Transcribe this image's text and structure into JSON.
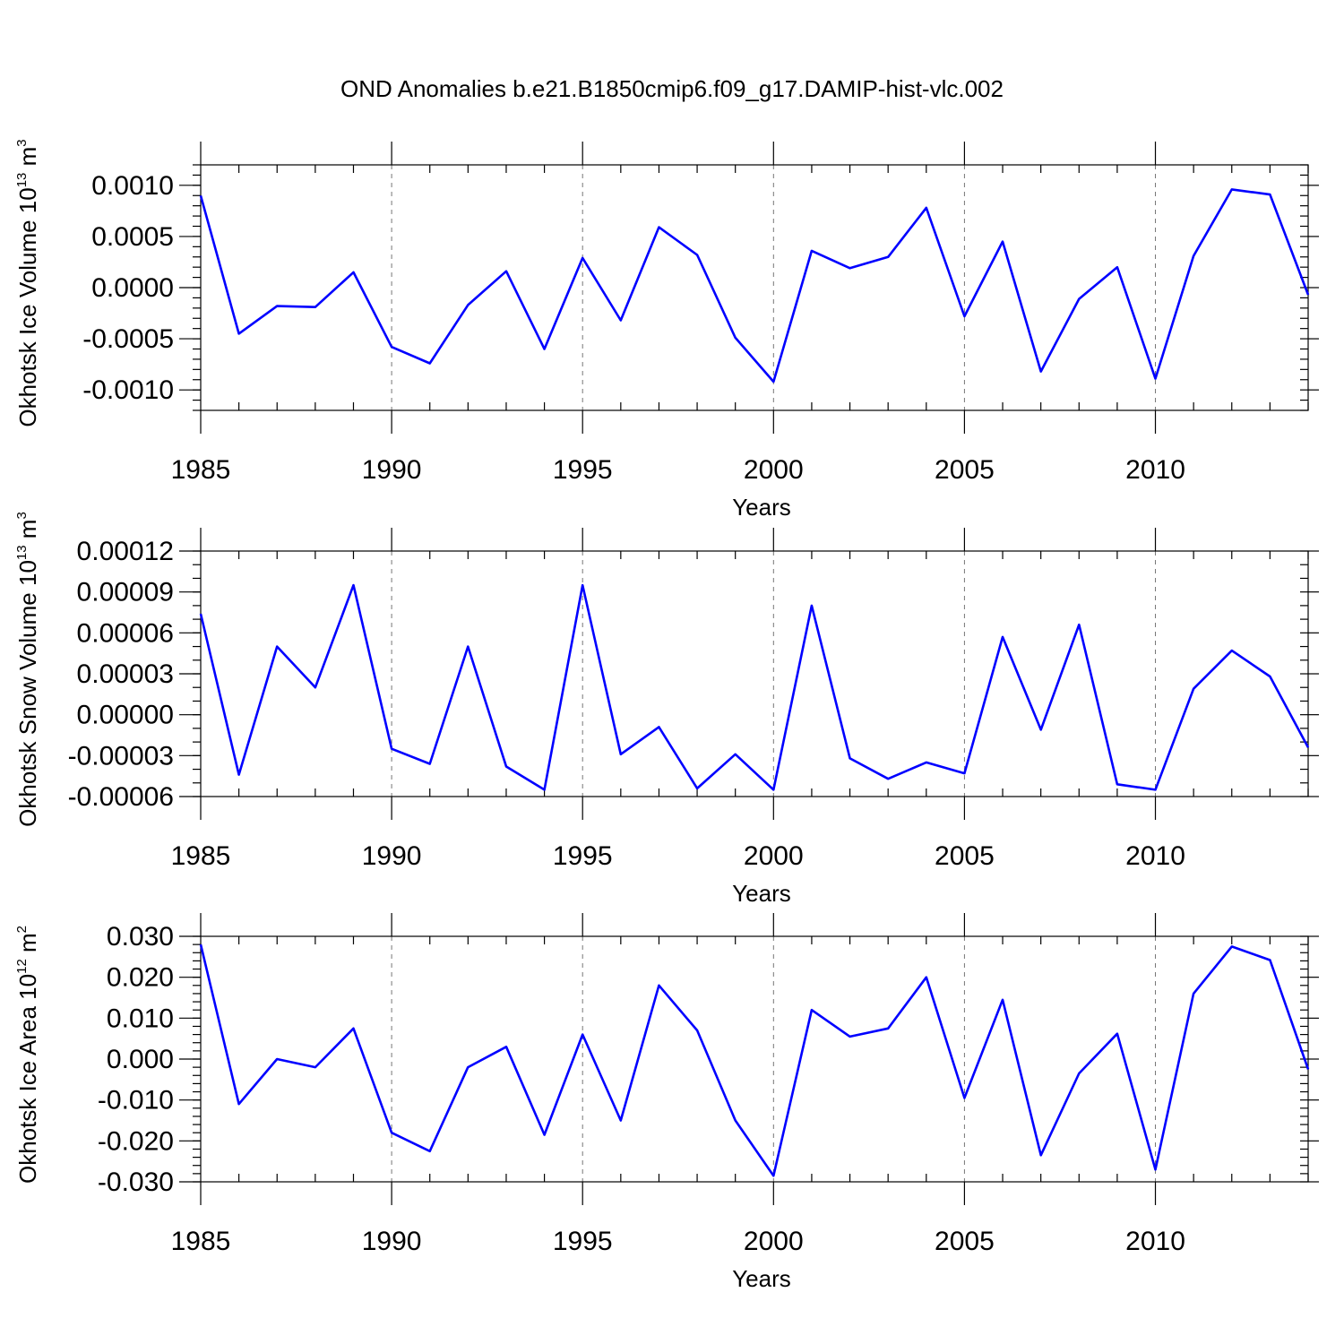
{
  "title": "OND Anomalies b.e21.B1850cmip6.f09_g17.DAMIP-hist-vlc.002",
  "colors": {
    "line": "#0000ff",
    "grid": "#777777",
    "axis": "#000000"
  },
  "chart_data": [
    {
      "type": "line",
      "ylabel": "Okhotsk Ice Volume 10",
      "ylabel_exp": "13",
      "ylabel_unit": " m",
      "ylabel_unit_exp": "3",
      "xlabel": "Years",
      "xlim": [
        1985,
        2014
      ],
      "ylim": [
        -0.0012,
        0.0012
      ],
      "yticks": [
        0.001,
        0.0005,
        0.0,
        -0.0005,
        -0.001
      ],
      "ytick_labels": [
        "0.0010",
        "0.0005",
        "0.0000",
        "-0.0005",
        "-0.0010"
      ],
      "yminor": 0.0001,
      "xticks": [
        1985,
        1990,
        1995,
        2000,
        2005,
        2010
      ],
      "xtick_labels": [
        "1985",
        "1990",
        "1995",
        "2000",
        "2005",
        "2010"
      ],
      "grid_x": [
        1990,
        1995,
        2000,
        2005,
        2010
      ],
      "x": [
        1985,
        1986,
        1987,
        1988,
        1989,
        1990,
        1991,
        1992,
        1993,
        1994,
        1995,
        1996,
        1997,
        1998,
        1999,
        2000,
        2001,
        2002,
        2003,
        2004,
        2005,
        2006,
        2007,
        2008,
        2009,
        2010,
        2011,
        2012,
        2013,
        2014
      ],
      "values": [
        0.0009,
        -0.00045,
        -0.00018,
        -0.00019,
        0.00015,
        -0.00058,
        -0.00074,
        -0.00017,
        0.00016,
        -0.0006,
        0.00029,
        -0.00032,
        0.00059,
        0.00032,
        -0.00049,
        -0.00092,
        0.00036,
        0.00019,
        0.0003,
        0.00078,
        -0.00028,
        0.00045,
        -0.00082,
        -0.00011,
        0.0002,
        -0.00089,
        0.00031,
        0.00096,
        0.00091,
        -7e-05
      ]
    },
    {
      "type": "line",
      "ylabel": "Okhotsk Snow Volume 10",
      "ylabel_exp": "13",
      "ylabel_unit": " m",
      "ylabel_unit_exp": "3",
      "xlabel": "Years",
      "xlim": [
        1985,
        2014
      ],
      "ylim": [
        -6e-05,
        0.00012
      ],
      "yticks": [
        0.00012,
        9e-05,
        6e-05,
        3e-05,
        0.0,
        -3e-05,
        -6e-05
      ],
      "ytick_labels": [
        "0.00012",
        "0.00009",
        "0.00006",
        "0.00003",
        "0.00000",
        "-0.00003",
        "-0.00006"
      ],
      "yminor": 1e-05,
      "xticks": [
        1985,
        1990,
        1995,
        2000,
        2005,
        2010
      ],
      "xtick_labels": [
        "1985",
        "1990",
        "1995",
        "2000",
        "2005",
        "2010"
      ],
      "grid_x": [
        1990,
        1995,
        2000,
        2005,
        2010
      ],
      "x": [
        1985,
        1986,
        1987,
        1988,
        1989,
        1990,
        1991,
        1992,
        1993,
        1994,
        1995,
        1996,
        1997,
        1998,
        1999,
        2000,
        2001,
        2002,
        2003,
        2004,
        2005,
        2006,
        2007,
        2008,
        2009,
        2010,
        2011,
        2012,
        2013,
        2014
      ],
      "values": [
        7.4e-05,
        -4.4e-05,
        5e-05,
        2e-05,
        9.5e-05,
        -2.5e-05,
        -3.6e-05,
        5e-05,
        -3.8e-05,
        -5.5e-05,
        9.5e-05,
        -2.9e-05,
        -9e-06,
        -5.4e-05,
        -2.9e-05,
        -5.5e-05,
        8e-05,
        -3.2e-05,
        -4.7e-05,
        -3.5e-05,
        -4.3e-05,
        5.7e-05,
        -1.1e-05,
        6.6e-05,
        -5.1e-05,
        -5.5e-05,
        1.9e-05,
        4.7e-05,
        2.8e-05,
        -2.4e-05
      ]
    },
    {
      "type": "line",
      "ylabel": "Okhotsk Ice Area 10",
      "ylabel_exp": "12",
      "ylabel_unit": " m",
      "ylabel_unit_exp": "2",
      "xlabel": "Years",
      "xlim": [
        1985,
        2014
      ],
      "ylim": [
        -0.03,
        0.03
      ],
      "yticks": [
        0.03,
        0.02,
        0.01,
        0.0,
        -0.01,
        -0.02,
        -0.03
      ],
      "ytick_labels": [
        "0.030",
        "0.020",
        "0.010",
        "0.000",
        "-0.010",
        "-0.020",
        "-0.030"
      ],
      "yminor": 0.002,
      "xticks": [
        1985,
        1990,
        1995,
        2000,
        2005,
        2010
      ],
      "xtick_labels": [
        "1985",
        "1990",
        "1995",
        "2000",
        "2005",
        "2010"
      ],
      "grid_x": [
        1990,
        1995,
        2000,
        2005,
        2010
      ],
      "x": [
        1985,
        1986,
        1987,
        1988,
        1989,
        1990,
        1991,
        1992,
        1993,
        1994,
        1995,
        1996,
        1997,
        1998,
        1999,
        2000,
        2001,
        2002,
        2003,
        2004,
        2005,
        2006,
        2007,
        2008,
        2009,
        2010,
        2011,
        2012,
        2013,
        2014
      ],
      "values": [
        0.028,
        -0.011,
        0.0,
        -0.002,
        0.0075,
        -0.018,
        -0.0225,
        -0.002,
        0.003,
        -0.0185,
        0.006,
        -0.015,
        0.018,
        0.007,
        -0.015,
        -0.0285,
        0.012,
        0.0055,
        0.0075,
        0.02,
        -0.0095,
        0.0145,
        -0.0235,
        -0.0035,
        0.0062,
        -0.027,
        0.016,
        0.0275,
        0.0242,
        -0.0025
      ]
    }
  ]
}
